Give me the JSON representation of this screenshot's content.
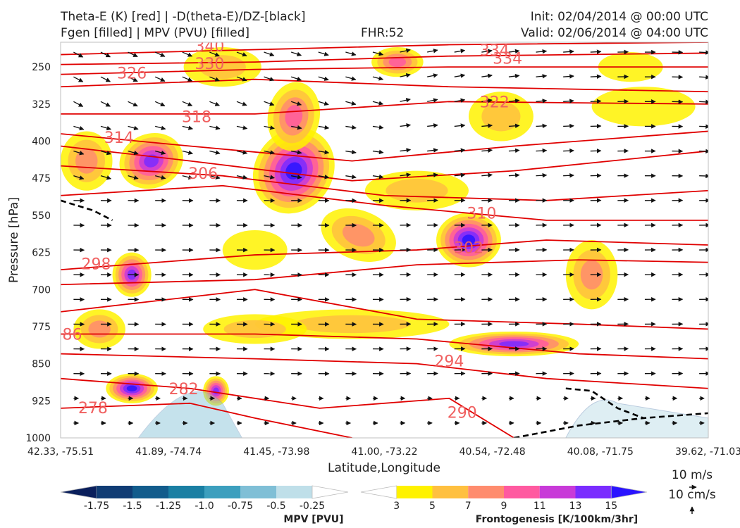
{
  "header": {
    "title_line1": "Theta-E (K) [red] | -D(theta-E)/DZ-[black]",
    "title_line2": "Fgen [filled] | MPV (PVU) [filled]",
    "fhr": "FHR:52",
    "init": "Init: 02/04/2014 @ 00:00 UTC",
    "valid": "Valid: 02/06/2014 @ 04:00 UTC"
  },
  "chart_data": {
    "type": "contour",
    "xlabel": "Latitude,Longitude",
    "ylabel": "Pressure [hPa]",
    "x_ticks": [
      "42.33, -75.51",
      "41.89, -74.74",
      "41.45, -73.98",
      "41.00, -73.22",
      "40.54, -72.48",
      "40.08, -71.75",
      "39.62, -71.03"
    ],
    "y_ticks": [
      250,
      325,
      400,
      475,
      550,
      625,
      700,
      775,
      850,
      925,
      1000
    ],
    "ylim": [
      1000,
      200
    ],
    "y_inverted": true,
    "contour_labels": [
      {
        "text": "340",
        "x": 0.23,
        "p": 207
      },
      {
        "text": "334",
        "x": 0.67,
        "p": 216
      },
      {
        "text": "334",
        "x": 0.69,
        "p": 232
      },
      {
        "text": "330",
        "x": 0.23,
        "p": 243
      },
      {
        "text": "326",
        "x": 0.11,
        "p": 262
      },
      {
        "text": "322",
        "x": 0.67,
        "p": 320
      },
      {
        "text": "318",
        "x": 0.21,
        "p": 350
      },
      {
        "text": "314",
        "x": 0.09,
        "p": 392
      },
      {
        "text": "306",
        "x": 0.22,
        "p": 465
      },
      {
        "text": "310",
        "x": 0.65,
        "p": 545
      },
      {
        "text": "302",
        "x": 0.63,
        "p": 615
      },
      {
        "text": "298",
        "x": 0.055,
        "p": 648
      },
      {
        "text": "86",
        "x": 0.018,
        "p": 790
      },
      {
        "text": "294",
        "x": 0.6,
        "p": 844
      },
      {
        "text": "282",
        "x": 0.19,
        "p": 900
      },
      {
        "text": "278",
        "x": 0.05,
        "p": 939
      },
      {
        "text": "290",
        "x": 0.62,
        "p": 948
      }
    ],
    "mpv_colorbar": {
      "label": "MPV [PVU]",
      "ticks": [
        "-1.75",
        "-1.5",
        "-1.25",
        "-1.0",
        "-0.75",
        "-0.5",
        "-0.25"
      ],
      "colors": [
        "#0a1f5c",
        "#103c74",
        "#125c8c",
        "#1a7fa3",
        "#3c9fbe",
        "#7fbfd6",
        "#bfdfe9",
        "#ffffff"
      ]
    },
    "fgen_colorbar": {
      "label": "Frontogenesis [K/100km/3hr]",
      "ticks": [
        "3",
        "5",
        "7",
        "9",
        "11",
        "13",
        "15"
      ],
      "colors": [
        "#ffffff",
        "#fff200",
        "#ffc040",
        "#ff8c6e",
        "#ff5aa0",
        "#c83ad8",
        "#7a2cff",
        "#2a14ff"
      ]
    },
    "vector_key": {
      "u_label": "10 m/s",
      "w_label": "10 cm/s"
    }
  }
}
